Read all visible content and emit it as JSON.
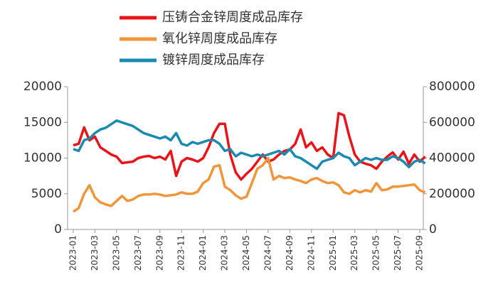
{
  "chart_data": {
    "type": "line",
    "categories": [
      "2023-01",
      null,
      null,
      null,
      "2023-03",
      null,
      null,
      null,
      "2023-05",
      null,
      null,
      null,
      "2023-07",
      null,
      null,
      null,
      "2023-09",
      null,
      null,
      null,
      "2023-11",
      null,
      null,
      null,
      "2024-01",
      null,
      null,
      null,
      "2024-03",
      null,
      null,
      null,
      "2024-05",
      null,
      null,
      null,
      "2024-07",
      null,
      null,
      null,
      "2024-09",
      null,
      null,
      null,
      "2024-11",
      null,
      null,
      null,
      "2025-01",
      null,
      null,
      null,
      "2025-03",
      null,
      null,
      null,
      "2025-05",
      null,
      null,
      null,
      "2025-07",
      null,
      null,
      null,
      "2025-09",
      null
    ],
    "series": [
      {
        "name": "压铸合金锌周度成品库存",
        "color": "#e8141a",
        "axis": "y",
        "values": [
          11800,
          12000,
          14300,
          12500,
          13000,
          11500,
          11000,
          10500,
          10200,
          9300,
          9400,
          9500,
          10000,
          10200,
          10300,
          10000,
          10200,
          9800,
          11000,
          7500,
          9500,
          10000,
          9800,
          9500,
          10000,
          11500,
          13500,
          14800,
          14800,
          10500,
          8000,
          7000,
          7800,
          8500,
          9500,
          10500,
          9500,
          9800,
          10500,
          11000,
          11200,
          12000,
          14000,
          11500,
          12200,
          11000,
          11500,
          10500,
          10000,
          16300,
          16000,
          13000,
          10500,
          9500,
          9200,
          9000,
          8500,
          9500,
          10200,
          10800,
          9800,
          10900,
          9200,
          10500,
          9500,
          10200
        ]
      },
      {
        "name": "氧化锌周度成品库存",
        "color": "#f0953a",
        "axis": "y",
        "values": [
          2500,
          3000,
          5000,
          6200,
          4500,
          3800,
          3500,
          3300,
          4000,
          4700,
          4000,
          4200,
          4700,
          4900,
          4900,
          5000,
          4900,
          4700,
          4800,
          4900,
          5200,
          5000,
          5000,
          5300,
          6500,
          7000,
          8800,
          9000,
          6000,
          5500,
          4800,
          4300,
          4600,
          6500,
          8500,
          9000,
          10000,
          7000,
          7500,
          7200,
          7300,
          7000,
          6800,
          6500,
          7000,
          7200,
          6800,
          6500,
          6600,
          6200,
          5200,
          5000,
          5500,
          5200,
          5500,
          5300,
          6500,
          5500,
          5600,
          6000,
          6000,
          6100,
          6200,
          6300,
          5500,
          5200
        ]
      },
      {
        "name": "镀锌周度成品库存",
        "color": "#1a8ab0",
        "axis": "y2",
        "values": [
          450000,
          440000,
          500000,
          510000,
          540000,
          560000,
          570000,
          590000,
          610000,
          600000,
          590000,
          580000,
          560000,
          540000,
          530000,
          520000,
          510000,
          520000,
          500000,
          540000,
          480000,
          470000,
          490000,
          480000,
          490000,
          500000,
          500000,
          480000,
          440000,
          450000,
          410000,
          430000,
          420000,
          410000,
          420000,
          410000,
          420000,
          430000,
          440000,
          420000,
          450000,
          410000,
          400000,
          380000,
          360000,
          340000,
          380000,
          390000,
          400000,
          430000,
          410000,
          400000,
          360000,
          380000,
          400000,
          390000,
          400000,
          390000,
          390000,
          410000,
          400000,
          380000,
          350000,
          380000,
          390000,
          370000
        ]
      }
    ],
    "ylim": [
      0,
      20000
    ],
    "yticks": [
      0,
      5000,
      10000,
      15000,
      20000
    ],
    "y2lim": [
      0,
      800000
    ],
    "y2ticks": [
      0,
      200000,
      400000,
      600000,
      800000
    ]
  }
}
